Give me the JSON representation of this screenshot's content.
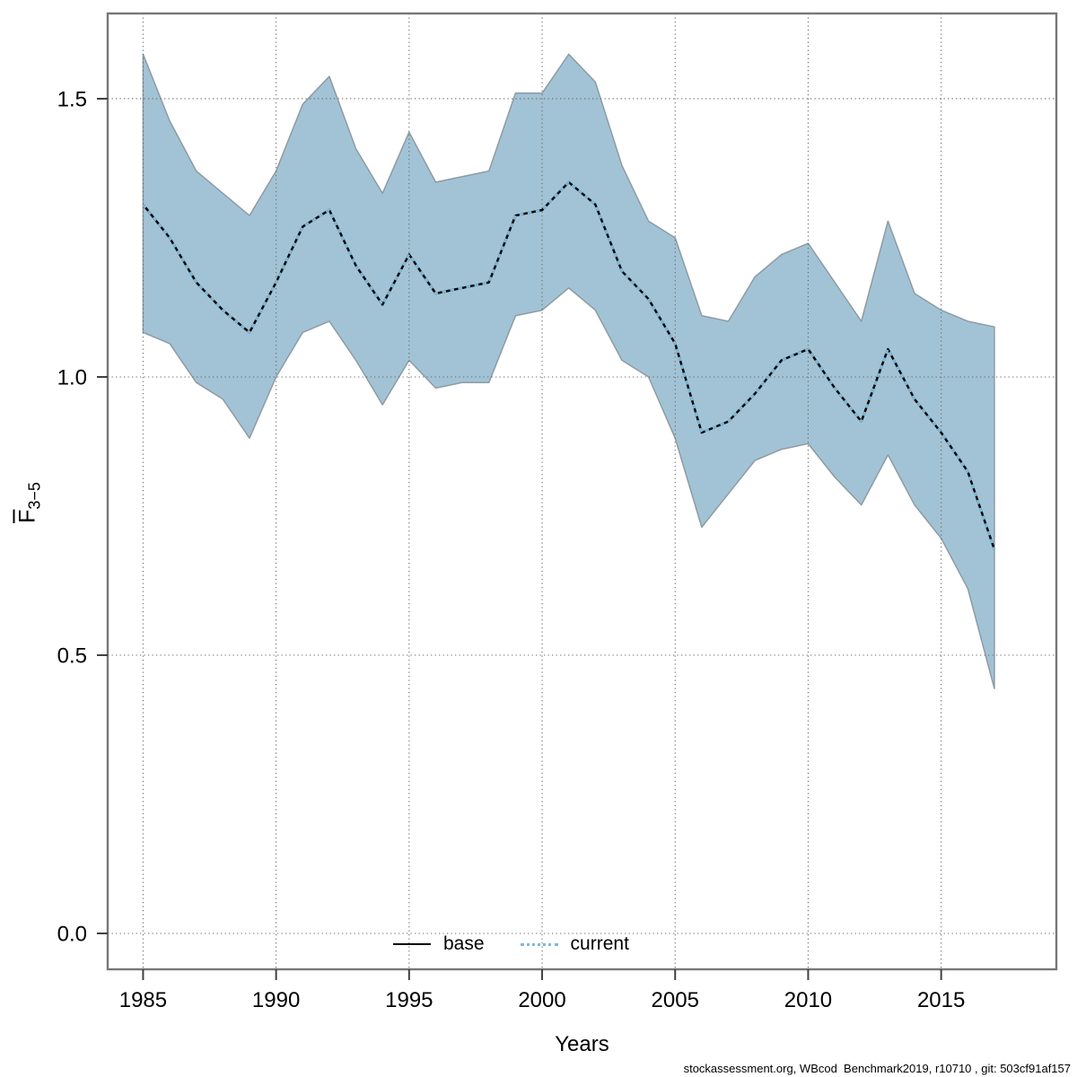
{
  "figure": {
    "background": "#ffffff",
    "caption": "stockassessment.org, WBcod  Benchmark2019, r10710 , git: 503cf91af157"
  },
  "axes": {
    "xlabel": "Years",
    "ylabel_main": "F",
    "ylabel_sub": "3−5",
    "x_ticks": [
      "1985",
      "1990",
      "1995",
      "2000",
      "2005",
      "2010",
      "2015"
    ],
    "y_ticks": [
      "0.0",
      "0.5",
      "1.0",
      "1.5"
    ]
  },
  "legend": {
    "items": [
      {
        "label": "base",
        "style": "solid",
        "color": "#000000"
      },
      {
        "label": "current",
        "style": "dotted",
        "color": "#7db9dc"
      }
    ],
    "position": "bottom-center-inside"
  },
  "colors": {
    "band_fill": "#a2c3d5",
    "band_edge": "#8d9ba4",
    "base_line": "#000000",
    "current_line": "#7db9dc",
    "grid": "#6b6b6b",
    "frame": "#777777",
    "tick": "#404040",
    "text": "#000000"
  },
  "chart_data": {
    "type": "line",
    "title": "",
    "xlabel": "Years",
    "ylabel": "F3-5 (mean F ages 3-5, with overbar)",
    "grid": true,
    "legend_position": "bottom center inside plot",
    "xlim": [
      1983.67,
      2019.33
    ],
    "ylim": [
      -0.0645,
      1.6532
    ],
    "x_tick_values": [
      1985,
      1990,
      1995,
      2000,
      2005,
      2010,
      2015
    ],
    "y_tick_values": [
      0.0,
      0.5,
      1.0,
      1.5
    ],
    "x": [
      1985,
      1986,
      1987,
      1988,
      1989,
      1990,
      1991,
      1992,
      1993,
      1994,
      1995,
      1996,
      1997,
      1998,
      1999,
      2000,
      2001,
      2002,
      2003,
      2004,
      2005,
      2006,
      2007,
      2008,
      2009,
      2010,
      2011,
      2012,
      2013,
      2014,
      2015,
      2016,
      2017
    ],
    "series": [
      {
        "name": "base",
        "values": [
          1.31,
          1.25,
          1.17,
          1.12,
          1.08,
          1.17,
          1.27,
          1.3,
          1.2,
          1.13,
          1.22,
          1.15,
          1.16,
          1.17,
          1.29,
          1.3,
          1.35,
          1.31,
          1.19,
          1.14,
          1.06,
          0.9,
          0.92,
          0.97,
          1.03,
          1.05,
          0.98,
          0.92,
          1.05,
          0.96,
          0.9,
          0.83,
          0.69
        ]
      },
      {
        "name": "current",
        "values": [
          1.31,
          1.25,
          1.17,
          1.12,
          1.08,
          1.17,
          1.27,
          1.3,
          1.2,
          1.13,
          1.22,
          1.15,
          1.16,
          1.17,
          1.29,
          1.3,
          1.35,
          1.31,
          1.19,
          1.14,
          1.06,
          0.9,
          0.92,
          0.97,
          1.03,
          1.05,
          0.98,
          0.92,
          1.05,
          0.96,
          0.9,
          0.83,
          0.69
        ]
      },
      {
        "name": "current_ci_low",
        "values": [
          1.08,
          1.06,
          0.99,
          0.96,
          0.89,
          1.0,
          1.08,
          1.1,
          1.03,
          0.95,
          1.03,
          0.98,
          0.99,
          0.99,
          1.11,
          1.12,
          1.16,
          1.12,
          1.03,
          1.0,
          0.89,
          0.73,
          0.79,
          0.85,
          0.87,
          0.88,
          0.82,
          0.77,
          0.86,
          0.77,
          0.71,
          0.62,
          0.44
        ]
      },
      {
        "name": "current_ci_high",
        "values": [
          1.58,
          1.46,
          1.37,
          1.33,
          1.29,
          1.37,
          1.49,
          1.54,
          1.41,
          1.33,
          1.44,
          1.35,
          1.36,
          1.37,
          1.51,
          1.51,
          1.58,
          1.53,
          1.38,
          1.28,
          1.25,
          1.11,
          1.1,
          1.18,
          1.22,
          1.24,
          1.17,
          1.1,
          1.28,
          1.15,
          1.12,
          1.1,
          1.09
        ]
      }
    ]
  }
}
